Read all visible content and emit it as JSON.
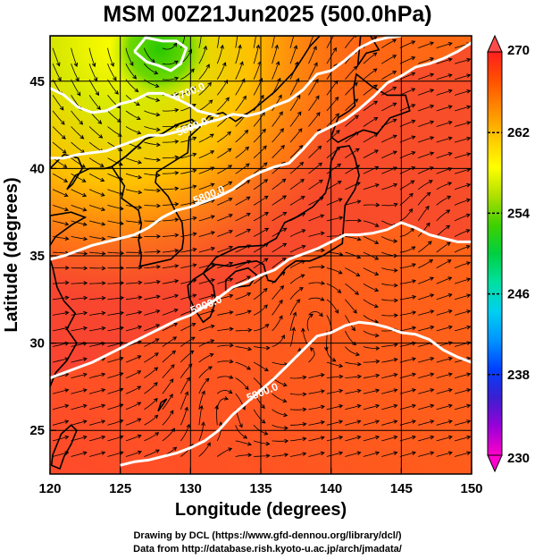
{
  "title": "MSM 00Z21Jun2025 (500.0hPa)",
  "map": {
    "x_axis": {
      "label": "Longitude (degrees)",
      "min": 120,
      "max": 150,
      "ticks": [
        "120",
        "125",
        "130",
        "135",
        "140",
        "145",
        "150"
      ]
    },
    "y_axis": {
      "label": "Latitude  (degrees)",
      "min": 22.5,
      "max": 47.6,
      "ticks": [
        "25",
        "30",
        "35",
        "40",
        "45"
      ]
    },
    "grid_step_deg": 5,
    "contours": [
      {
        "label": "5700.0",
        "points": [
          [
            120,
            44.6
          ],
          [
            121,
            44.2
          ],
          [
            122,
            43.5
          ],
          [
            123,
            43.2
          ],
          [
            124,
            43.3
          ],
          [
            125,
            43.7
          ],
          [
            126,
            43.9
          ],
          [
            127,
            44.3
          ],
          [
            128,
            44.3
          ],
          [
            129,
            44.0
          ],
          [
            130,
            43.6
          ],
          [
            130.5,
            43.3
          ],
          [
            131,
            43.2
          ],
          [
            132,
            43.0
          ]
        ]
      },
      {
        "label": "5800.0",
        "points": [
          [
            120,
            40.6
          ],
          [
            121,
            40.6
          ],
          [
            122,
            40.8
          ],
          [
            123,
            40.9
          ],
          [
            124,
            41.0
          ],
          [
            125,
            41.3
          ],
          [
            126,
            41.6
          ],
          [
            127,
            41.9
          ],
          [
            128,
            41.9
          ],
          [
            129,
            42.1
          ],
          [
            130,
            42.3
          ],
          [
            131,
            42.6
          ],
          [
            132,
            42.8
          ],
          [
            133,
            43.1
          ],
          [
            134,
            43.0
          ],
          [
            135,
            43.2
          ],
          [
            136,
            43.6
          ],
          [
            137,
            43.9
          ],
          [
            138,
            44.5
          ],
          [
            139,
            45.4
          ],
          [
            140,
            45.6
          ],
          [
            141,
            46.2
          ],
          [
            142,
            46.9
          ],
          [
            143,
            47.3
          ],
          [
            144,
            47.5
          ],
          [
            145,
            47.6
          ]
        ]
      },
      {
        "label": "5800.0",
        "points": [
          [
            126,
            46.7
          ],
          [
            126.8,
            47.5
          ],
          [
            128,
            47.3
          ],
          [
            129,
            47.3
          ],
          [
            129.7,
            46.9
          ],
          [
            129.3,
            46.0
          ],
          [
            128.6,
            45.6
          ],
          [
            127.7,
            45.9
          ],
          [
            126.9,
            46.1
          ],
          [
            126,
            46.7
          ]
        ]
      },
      {
        "label": "5800.0",
        "points": [
          [
            120,
            34.8
          ],
          [
            121,
            35.0
          ],
          [
            122,
            35.3
          ],
          [
            123,
            35.6
          ],
          [
            124,
            35.8
          ],
          [
            125,
            36.0
          ],
          [
            126,
            36.2
          ],
          [
            127,
            36.6
          ],
          [
            128,
            37.2
          ],
          [
            129,
            37.6
          ],
          [
            130,
            37.8
          ],
          [
            131,
            38.1
          ],
          [
            132,
            38.4
          ],
          [
            133,
            38.8
          ],
          [
            134,
            39.4
          ],
          [
            135,
            39.8
          ],
          [
            136,
            40.1
          ],
          [
            137,
            40.3
          ],
          [
            138,
            41.1
          ],
          [
            139,
            42.0
          ],
          [
            140,
            42.4
          ],
          [
            141,
            42.8
          ],
          [
            142,
            43.4
          ],
          [
            143,
            44.1
          ],
          [
            144,
            44.9
          ],
          [
            145,
            45.3
          ],
          [
            146,
            45.8
          ],
          [
            147,
            46.0
          ],
          [
            148,
            46.3
          ],
          [
            149,
            46.7
          ],
          [
            150,
            47.2
          ]
        ]
      },
      {
        "label": "5900.0",
        "points": [
          [
            120,
            28.0
          ],
          [
            121,
            28.3
          ],
          [
            122,
            28.6
          ],
          [
            123,
            28.9
          ],
          [
            124,
            29.3
          ],
          [
            125,
            29.7
          ],
          [
            126,
            30.1
          ],
          [
            127,
            30.5
          ],
          [
            128,
            30.9
          ],
          [
            129,
            31.3
          ],
          [
            130,
            31.6
          ],
          [
            131,
            32.1
          ],
          [
            132,
            32.6
          ],
          [
            133,
            33.2
          ],
          [
            134,
            33.5
          ],
          [
            135,
            33.9
          ],
          [
            136,
            34.2
          ],
          [
            137,
            34.8
          ],
          [
            138,
            35.1
          ],
          [
            139,
            35.4
          ],
          [
            140,
            35.8
          ],
          [
            141,
            36.2
          ],
          [
            142,
            36.2
          ],
          [
            143,
            36.3
          ],
          [
            144,
            36.5
          ],
          [
            145,
            36.9
          ],
          [
            146,
            36.6
          ],
          [
            147,
            36.2
          ],
          [
            148,
            36.0
          ],
          [
            149,
            35.8
          ],
          [
            150,
            35.8
          ]
        ]
      },
      {
        "label": "5900.0",
        "points": [
          [
            125,
            23.0
          ],
          [
            126,
            23.2
          ],
          [
            127,
            23.3
          ],
          [
            128,
            23.5
          ],
          [
            129,
            23.7
          ],
          [
            130,
            24.0
          ],
          [
            131,
            24.4
          ],
          [
            132,
            25.0
          ],
          [
            133,
            25.9
          ],
          [
            134,
            26.6
          ],
          [
            135,
            27.3
          ],
          [
            136,
            28.0
          ],
          [
            137,
            28.8
          ],
          [
            138,
            29.6
          ],
          [
            139,
            30.4
          ],
          [
            140,
            30.6
          ],
          [
            141,
            31.0
          ],
          [
            142,
            31.2
          ],
          [
            143,
            31.1
          ],
          [
            144,
            30.9
          ],
          [
            145,
            30.6
          ],
          [
            146,
            30.5
          ],
          [
            147,
            30.2
          ],
          [
            148,
            29.6
          ],
          [
            149,
            29.2
          ],
          [
            150,
            28.9
          ]
        ]
      }
    ],
    "contour_labels": [
      {
        "text": "5700.0",
        "lon": 130.0,
        "lat": 44.2
      },
      {
        "text": "5800.0",
        "lon": 130.2,
        "lat": 42.2
      },
      {
        "text": "5800.0",
        "lon": 131.4,
        "lat": 38.3
      },
      {
        "text": "5900.0",
        "lon": 131.2,
        "lat": 32.0
      },
      {
        "text": "5900.0",
        "lon": 135.2,
        "lat": 27.0
      }
    ],
    "land_shapes": [
      [
        [
          130.9,
          31.2
        ],
        [
          131.4,
          31.5
        ],
        [
          131.8,
          32.4
        ],
        [
          131.6,
          33.3
        ],
        [
          130.9,
          34.0
        ],
        [
          130.3,
          33.7
        ],
        [
          129.8,
          33.3
        ],
        [
          129.9,
          32.6
        ],
        [
          130.4,
          31.8
        ],
        [
          130.9,
          31.2
        ]
      ],
      [
        [
          132.5,
          32.9
        ],
        [
          133.2,
          33.2
        ],
        [
          134.2,
          33.3
        ],
        [
          134.7,
          33.9
        ],
        [
          134.1,
          34.3
        ],
        [
          133.2,
          34.1
        ],
        [
          132.5,
          33.6
        ],
        [
          132.5,
          32.9
        ]
      ],
      [
        [
          130.9,
          34.0
        ],
        [
          131.8,
          34.5
        ],
        [
          132.8,
          34.4
        ],
        [
          133.8,
          34.6
        ],
        [
          134.7,
          34.7
        ],
        [
          135.2,
          34.5
        ],
        [
          135.5,
          33.6
        ],
        [
          136.0,
          33.5
        ],
        [
          136.8,
          34.3
        ],
        [
          137.5,
          34.7
        ],
        [
          138.5,
          34.7
        ],
        [
          139.4,
          35.0
        ],
        [
          140.0,
          35.3
        ],
        [
          140.8,
          35.7
        ],
        [
          140.9,
          36.9
        ],
        [
          141.0,
          37.9
        ],
        [
          141.7,
          38.8
        ],
        [
          142.0,
          39.6
        ],
        [
          141.7,
          40.6
        ],
        [
          141.3,
          41.3
        ],
        [
          140.5,
          41.2
        ],
        [
          140.0,
          40.4
        ],
        [
          139.9,
          39.5
        ],
        [
          139.6,
          38.6
        ],
        [
          138.7,
          37.8
        ],
        [
          137.5,
          37.2
        ],
        [
          136.7,
          36.9
        ],
        [
          136.1,
          36.0
        ],
        [
          135.2,
          35.6
        ],
        [
          133.4,
          35.5
        ],
        [
          131.8,
          34.9
        ],
        [
          130.9,
          34.0
        ]
      ],
      [
        [
          140.0,
          41.8
        ],
        [
          140.5,
          41.5
        ],
        [
          141.2,
          41.8
        ],
        [
          142.3,
          42.2
        ],
        [
          143.3,
          42.0
        ],
        [
          144.2,
          42.9
        ],
        [
          145.6,
          43.3
        ],
        [
          145.3,
          44.2
        ],
        [
          144.0,
          44.2
        ],
        [
          142.9,
          44.7
        ],
        [
          141.8,
          45.4
        ],
        [
          141.6,
          44.6
        ],
        [
          141.7,
          43.6
        ],
        [
          141.3,
          43.3
        ],
        [
          140.5,
          42.9
        ],
        [
          140.0,
          41.8
        ]
      ],
      [
        [
          141.9,
          45.9
        ],
        [
          142.5,
          46.6
        ],
        [
          143.4,
          46.8
        ],
        [
          142.8,
          47.6
        ],
        [
          142.1,
          47.6
        ],
        [
          141.9,
          45.9
        ]
      ],
      [
        [
          126.4,
          34.4
        ],
        [
          127.5,
          34.6
        ],
        [
          128.6,
          34.8
        ],
        [
          129.4,
          35.4
        ],
        [
          129.5,
          36.0
        ],
        [
          129.4,
          36.9
        ],
        [
          128.9,
          37.6
        ],
        [
          128.4,
          38.4
        ],
        [
          127.5,
          39.2
        ],
        [
          127.6,
          39.8
        ],
        [
          128.6,
          40.3
        ],
        [
          129.8,
          40.9
        ],
        [
          129.9,
          41.8
        ],
        [
          130.7,
          42.4
        ],
        [
          130.1,
          42.8
        ],
        [
          129.0,
          42.5
        ],
        [
          128.0,
          42.0
        ],
        [
          126.8,
          41.7
        ],
        [
          125.4,
          40.7
        ],
        [
          124.4,
          40.1
        ],
        [
          124.8,
          39.6
        ],
        [
          125.3,
          39.0
        ],
        [
          125.1,
          38.3
        ],
        [
          126.3,
          37.6
        ],
        [
          126.5,
          36.8
        ],
        [
          126.3,
          35.9
        ],
        [
          126.5,
          35.0
        ],
        [
          126.4,
          34.4
        ]
      ],
      [
        [
          120.0,
          40.0
        ],
        [
          121.0,
          40.8
        ],
        [
          122.0,
          40.6
        ],
        [
          122.3,
          40.0
        ],
        [
          121.6,
          39.1
        ],
        [
          121.2,
          38.8
        ],
        [
          121.8,
          39.6
        ],
        [
          122.8,
          40.0
        ],
        [
          123.9,
          40.0
        ],
        [
          124.4,
          40.1
        ],
        [
          125.4,
          40.7
        ],
        [
          126.8,
          41.7
        ],
        [
          128.0,
          42.0
        ],
        [
          129.0,
          42.5
        ],
        [
          130.1,
          42.8
        ],
        [
          130.7,
          42.4
        ],
        [
          131.3,
          43.0
        ],
        [
          132.3,
          43.2
        ],
        [
          133.2,
          42.7
        ],
        [
          134.5,
          43.4
        ],
        [
          136.0,
          44.4
        ],
        [
          137.3,
          45.5
        ],
        [
          138.5,
          47.0
        ],
        [
          139.2,
          47.6
        ],
        [
          120.0,
          47.6
        ],
        [
          120.0,
          40.0
        ]
      ],
      [
        [
          120.0,
          37.3
        ],
        [
          121.5,
          37.5
        ],
        [
          122.5,
          37.2
        ],
        [
          121.6,
          36.8
        ],
        [
          120.4,
          36.1
        ],
        [
          120.0,
          35.6
        ],
        [
          120.0,
          37.3
        ]
      ],
      [
        [
          120.0,
          27.5
        ],
        [
          120.4,
          28.3
        ],
        [
          121.2,
          29.0
        ],
        [
          121.9,
          30.0
        ],
        [
          121.2,
          30.8
        ],
        [
          121.8,
          31.7
        ],
        [
          121.0,
          32.4
        ],
        [
          120.5,
          33.2
        ],
        [
          120.2,
          34.3
        ],
        [
          120.0,
          34.8
        ],
        [
          120.0,
          27.5
        ]
      ],
      [
        [
          120.7,
          22.8
        ],
        [
          121.0,
          23.5
        ],
        [
          121.5,
          24.2
        ],
        [
          121.9,
          25.0
        ],
        [
          121.5,
          25.3
        ],
        [
          120.8,
          24.8
        ],
        [
          120.2,
          23.6
        ],
        [
          120.1,
          23.0
        ],
        [
          120.7,
          22.8
        ]
      ],
      [
        [
          127.7,
          26.1
        ],
        [
          128.3,
          26.8
        ],
        [
          127.9,
          26.6
        ],
        [
          127.7,
          26.1
        ]
      ]
    ]
  },
  "colorbar": {
    "min": 230,
    "max": 270,
    "ticks": [
      "270",
      "262",
      "254",
      "246",
      "238",
      "230"
    ],
    "colors": [
      "#ff00c8",
      "#9a00d8",
      "#3a1fd0",
      "#0040ff",
      "#0095ff",
      "#00d0f0",
      "#00e0a0",
      "#00d040",
      "#40d000",
      "#b0e000",
      "#ffff00",
      "#ffc800",
      "#ff8c00",
      "#ff5000",
      "#ff1e1e"
    ]
  },
  "credits": {
    "line1": "Drawing by DCL (https://www.gfd-dennou.org/library/dcl/)",
    "line2": "Data from http://database.rish.kyoto-u.ac.jp/arch/jmadata/"
  }
}
